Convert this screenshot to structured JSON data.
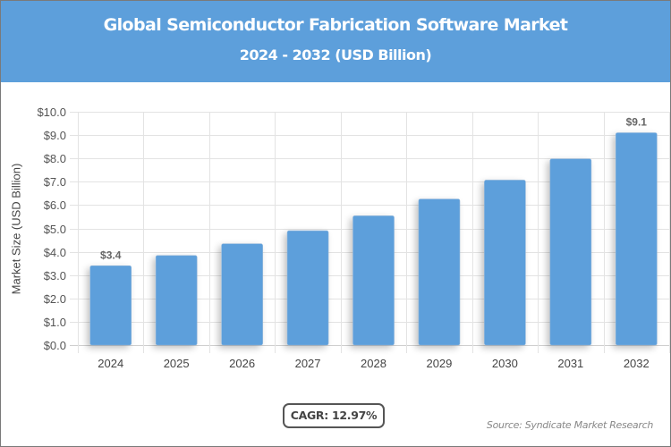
{
  "header": {
    "title": "Global Semiconductor Fabrication Software Market",
    "subtitle": "2024 - 2032 (USD Billion)"
  },
  "colors": {
    "header_bg": "#5d9fdb",
    "bar": "#5d9fdb",
    "grid": "#e3e3e3",
    "axis_text": "#555555"
  },
  "chart_data": {
    "type": "bar",
    "title": "Global Semiconductor Fabrication Software Market",
    "subtitle": "2024 - 2032 (USD Billion)",
    "xlabel": "",
    "ylabel": "Market Size (USD Billion)",
    "categories": [
      "2024",
      "2025",
      "2026",
      "2027",
      "2028",
      "2029",
      "2030",
      "2031",
      "2032"
    ],
    "values": [
      3.4,
      3.84,
      4.34,
      4.9,
      5.54,
      6.26,
      7.07,
      7.98,
      9.1
    ],
    "data_labels": {
      "0": "$3.4",
      "8": "$9.1"
    },
    "ylim": [
      0,
      10
    ],
    "yticks": [
      "$0.0",
      "$1.0",
      "$2.0",
      "$3.0",
      "$4.0",
      "$5.0",
      "$6.0",
      "$7.0",
      "$8.0",
      "$9.0",
      "$10.0"
    ],
    "grid": true,
    "legend": "none"
  },
  "footer": {
    "cagr": "CAGR: 12.97%",
    "source": "Source: Syndicate Market Research"
  }
}
